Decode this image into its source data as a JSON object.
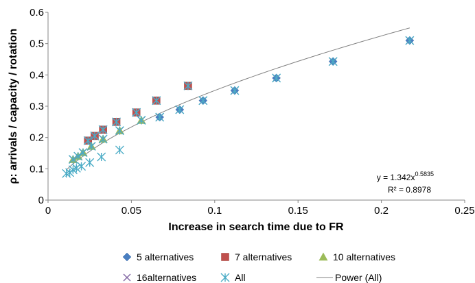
{
  "chart_data": {
    "type": "scatter",
    "xlabel": "Increase in search time due to FR",
    "ylabel": "ρ: arrivals / capacity / rotation",
    "xlim": [
      0,
      0.25
    ],
    "ylim": [
      0,
      0.6
    ],
    "x_ticks": [
      "0",
      "0.05",
      "0.1",
      "0.15",
      "0.2",
      "0.25"
    ],
    "y_ticks": [
      "0",
      "0.1",
      "0.2",
      "0.3",
      "0.4",
      "0.5",
      "0.6"
    ],
    "grid": false,
    "legend_position": "bottom",
    "series": [
      {
        "name": "5 alternatives",
        "marker": "diamond",
        "color": "#4a7fc1",
        "points": [
          [
            0.067,
            0.265
          ],
          [
            0.079,
            0.289
          ],
          [
            0.093,
            0.318
          ],
          [
            0.112,
            0.35
          ],
          [
            0.137,
            0.39
          ],
          [
            0.171,
            0.443
          ],
          [
            0.217,
            0.51
          ]
        ]
      },
      {
        "name": "7 alternatives",
        "marker": "square",
        "color": "#c0504d",
        "points": [
          [
            0.024,
            0.19
          ],
          [
            0.028,
            0.205
          ],
          [
            0.033,
            0.225
          ],
          [
            0.041,
            0.25
          ],
          [
            0.053,
            0.28
          ],
          [
            0.065,
            0.318
          ],
          [
            0.084,
            0.365
          ]
        ]
      },
      {
        "name": "10 alternatives",
        "marker": "triangle",
        "color": "#9bbb59",
        "points": [
          [
            0.015,
            0.13
          ],
          [
            0.018,
            0.14
          ],
          [
            0.021,
            0.152
          ],
          [
            0.026,
            0.172
          ],
          [
            0.033,
            0.195
          ],
          [
            0.043,
            0.222
          ],
          [
            0.056,
            0.255
          ]
        ]
      },
      {
        "name": "16alternatives",
        "marker": "x",
        "color": "#8064a2",
        "points": [
          [
            0.067,
            0.265
          ],
          [
            0.079,
            0.289
          ],
          [
            0.093,
            0.318
          ],
          [
            0.112,
            0.35
          ],
          [
            0.137,
            0.39
          ],
          [
            0.171,
            0.443
          ],
          [
            0.217,
            0.51
          ],
          [
            0.024,
            0.19
          ],
          [
            0.028,
            0.205
          ],
          [
            0.033,
            0.225
          ],
          [
            0.041,
            0.25
          ],
          [
            0.053,
            0.28
          ],
          [
            0.065,
            0.318
          ],
          [
            0.084,
            0.365
          ],
          [
            0.015,
            0.13
          ],
          [
            0.018,
            0.14
          ],
          [
            0.021,
            0.152
          ],
          [
            0.026,
            0.172
          ],
          [
            0.033,
            0.195
          ],
          [
            0.043,
            0.222
          ],
          [
            0.056,
            0.255
          ]
        ]
      },
      {
        "name": "All",
        "marker": "star",
        "color": "#4bacc6",
        "points": [
          [
            0.011,
            0.085
          ],
          [
            0.013,
            0.088
          ],
          [
            0.015,
            0.097
          ],
          [
            0.017,
            0.102
          ],
          [
            0.02,
            0.108
          ],
          [
            0.025,
            0.12
          ],
          [
            0.032,
            0.138
          ],
          [
            0.043,
            0.16
          ],
          [
            0.067,
            0.265
          ],
          [
            0.079,
            0.289
          ],
          [
            0.093,
            0.318
          ],
          [
            0.112,
            0.35
          ],
          [
            0.137,
            0.39
          ],
          [
            0.171,
            0.443
          ],
          [
            0.217,
            0.51
          ],
          [
            0.024,
            0.19
          ],
          [
            0.028,
            0.205
          ],
          [
            0.033,
            0.225
          ],
          [
            0.041,
            0.25
          ],
          [
            0.053,
            0.28
          ],
          [
            0.065,
            0.318
          ],
          [
            0.084,
            0.365
          ],
          [
            0.015,
            0.13
          ],
          [
            0.018,
            0.14
          ],
          [
            0.021,
            0.152
          ],
          [
            0.026,
            0.172
          ],
          [
            0.033,
            0.195
          ],
          [
            0.043,
            0.222
          ],
          [
            0.056,
            0.255
          ]
        ]
      }
    ],
    "trendline": {
      "name": "Power (All)",
      "color": "#808080",
      "coefficient": 1.342,
      "exponent": 0.5835,
      "x_range": [
        0.011,
        0.217
      ]
    },
    "annotation": {
      "equation_prefix": "y = 1.342x",
      "equation_exponent": "0.5835",
      "r_squared": "R² = 0.8978"
    }
  }
}
